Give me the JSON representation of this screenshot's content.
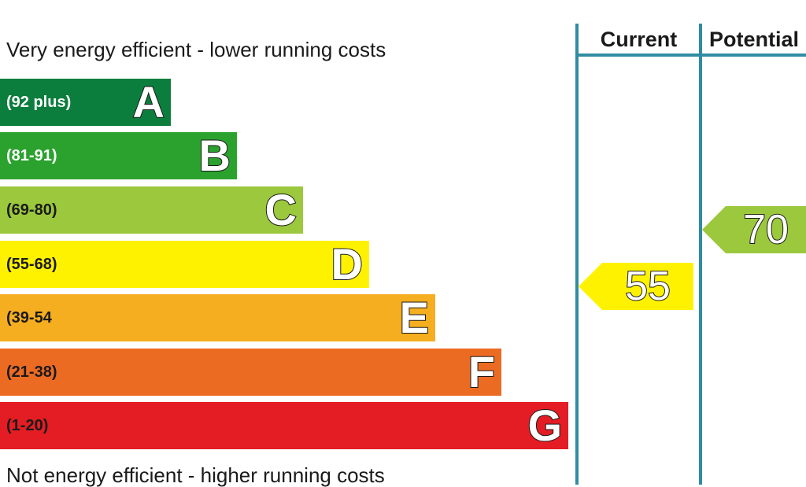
{
  "chart_data": {
    "type": "bar",
    "top_caption": "Very energy efficient - lower running costs",
    "bottom_caption": "Not energy efficient - higher running costs",
    "bands": [
      {
        "letter": "A",
        "range": "(92 plus)",
        "color": "#0b7d3c",
        "text_color": "#ffffff"
      },
      {
        "letter": "B",
        "range": "(81-91)",
        "color": "#2ba22e",
        "text_color": "#ffffff"
      },
      {
        "letter": "C",
        "range": "(69-80)",
        "color": "#9bc83c",
        "text_color": "#1a1a1a"
      },
      {
        "letter": "D",
        "range": "(55-68)",
        "color": "#fff200",
        "text_color": "#1a1a1a"
      },
      {
        "letter": "E",
        "range": "(39-54",
        "color": "#f5ae1f",
        "text_color": "#1a1a1a"
      },
      {
        "letter": "F",
        "range": "(21-38)",
        "color": "#ec6b23",
        "text_color": "#1a1a1a"
      },
      {
        "letter": "G",
        "range": "(1-20)",
        "color": "#e31d23",
        "text_color": "#1a1a1a"
      }
    ],
    "columns": {
      "current": "Current",
      "potential": "Potential"
    },
    "current": {
      "value": "55",
      "band": "D",
      "color": "#fff200"
    },
    "potential": {
      "value": "70",
      "band": "C",
      "color": "#9bc83c"
    },
    "line_color": "#2f8ca3"
  }
}
